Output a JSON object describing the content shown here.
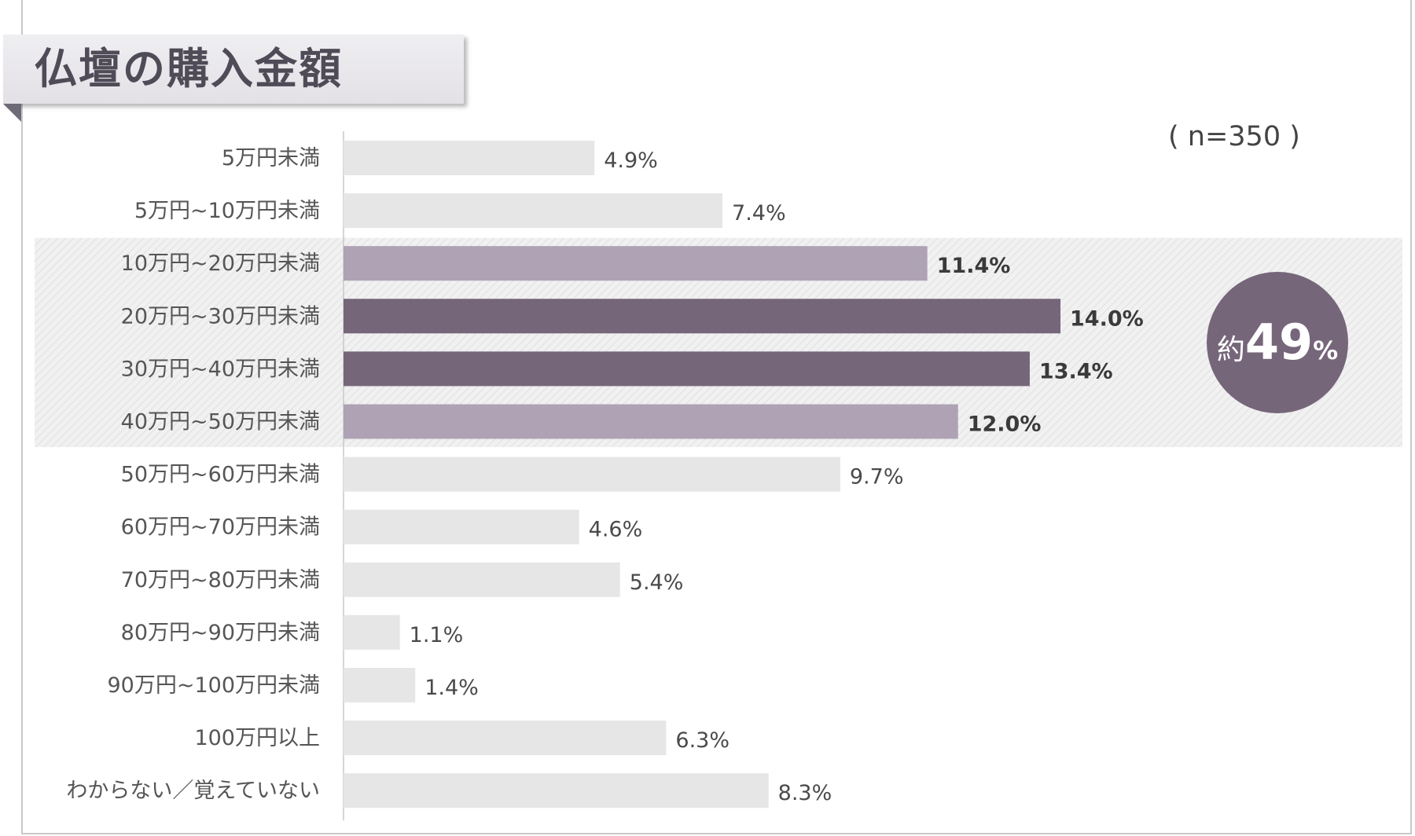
{
  "chart_data": {
    "type": "bar",
    "orientation": "horizontal",
    "title": "仏壇の購入金額",
    "sample_size": "( n=350 )",
    "unit": "%",
    "xlim": [
      0,
      15
    ],
    "highlight": {
      "categories": [
        "10万円~20万円未満",
        "20万円~30万円未満",
        "30万円~40万円未満",
        "40万円~50万円未満"
      ],
      "prefix": "約",
      "value": "49",
      "unit": "%"
    },
    "colors": {
      "default": "#e6e6e6",
      "light_highlight": "#aea2b4",
      "dark_highlight": "#76667a",
      "band": "#ececec"
    },
    "categories": [
      "5万円未満",
      "5万円~10万円未満",
      "10万円~20万円未満",
      "20万円~30万円未満",
      "30万円~40万円未満",
      "40万円~50万円未満",
      "50万円~60万円未満",
      "60万円~70万円未満",
      "70万円~80万円未満",
      "80万円~90万円未満",
      "90万円~100万円未満",
      "100万円以上",
      "わからない／覚えていない"
    ],
    "values": [
      4.9,
      7.4,
      11.4,
      14.0,
      13.4,
      12.0,
      9.7,
      4.6,
      5.4,
      1.1,
      1.4,
      6.3,
      8.3
    ],
    "value_labels": [
      "4.9%",
      "7.4%",
      "11.4%",
      "14.0%",
      "13.4%",
      "12.0%",
      "9.7%",
      "4.6%",
      "5.4%",
      "1.1%",
      "1.4%",
      "6.3%",
      "8.3%"
    ],
    "bar_styles": [
      "default",
      "default",
      "light_highlight",
      "dark_highlight",
      "dark_highlight",
      "light_highlight",
      "default",
      "default",
      "default",
      "default",
      "default",
      "default",
      "default"
    ]
  }
}
